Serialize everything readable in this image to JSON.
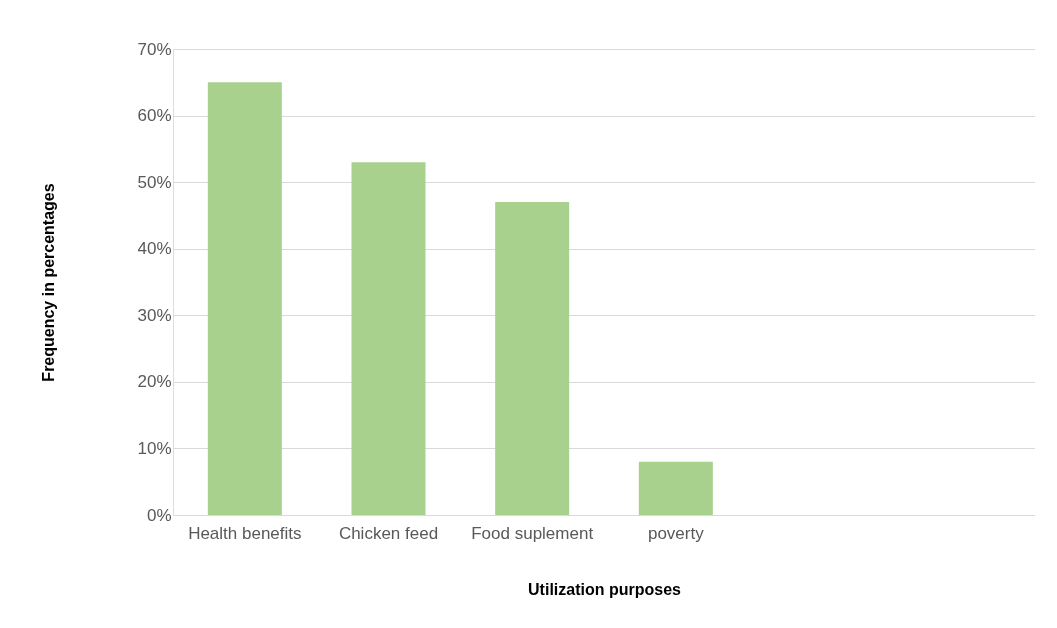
{
  "chart_data": {
    "type": "bar",
    "xlabel": "Utilization purposes",
    "ylabel": "Frequency in percentages",
    "categories": [
      "Health benefits",
      "Chicken feed",
      "Food suplement",
      "poverty",
      null,
      null
    ],
    "values": [
      65,
      53,
      47,
      8,
      null,
      null
    ],
    "color": "#a9d18e",
    "ylim": [
      0,
      70
    ],
    "yticks": [
      {
        "value": 0,
        "label": "0%"
      },
      {
        "value": 10,
        "label": "10%"
      },
      {
        "value": 20,
        "label": "20%"
      },
      {
        "value": 30,
        "label": "30%"
      },
      {
        "value": 40,
        "label": "40%"
      },
      {
        "value": 50,
        "label": "50%"
      },
      {
        "value": 60,
        "label": "60%"
      },
      {
        "value": 70,
        "label": "70%"
      }
    ],
    "grid": "y"
  }
}
